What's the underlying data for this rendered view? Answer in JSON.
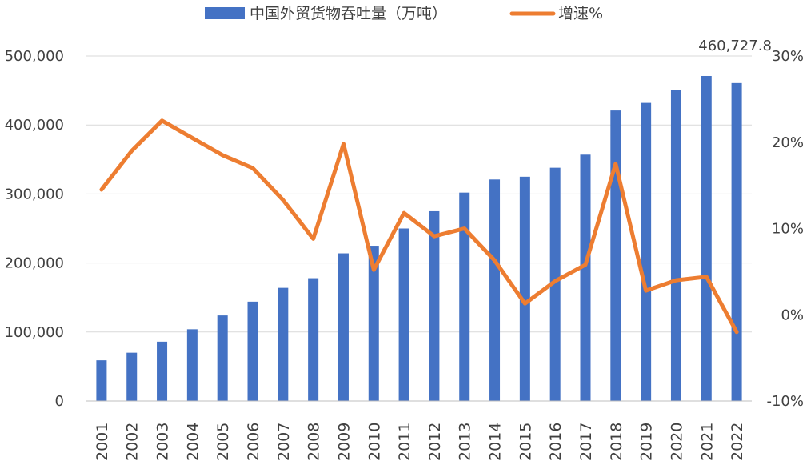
{
  "chart_data": {
    "type": "bar",
    "categories": [
      "2001",
      "2002",
      "2003",
      "2004",
      "2005",
      "2006",
      "2007",
      "2008",
      "2009",
      "2010",
      "2011",
      "2012",
      "2013",
      "2014",
      "2015",
      "2016",
      "2017",
      "2018",
      "2019",
      "2020",
      "2021",
      "2022"
    ],
    "series": [
      {
        "name": "中国外贸货物吞吐量（万吨）",
        "type": "bar",
        "axis": "left",
        "color": "#4472C4",
        "values": [
          59000,
          70000,
          86000,
          104000,
          124000,
          144000,
          164000,
          178000,
          214000,
          225000,
          250000,
          275000,
          302000,
          321000,
          325000,
          338000,
          357000,
          421000,
          432000,
          451000,
          471000,
          460727.8
        ]
      },
      {
        "name": "增速%",
        "type": "line",
        "axis": "right",
        "color": "#ED7D31",
        "values": [
          14.5,
          19.0,
          22.5,
          20.5,
          18.5,
          17.0,
          13.3,
          8.8,
          19.8,
          5.2,
          11.8,
          9.1,
          10.0,
          6.3,
          1.3,
          3.9,
          5.8,
          17.5,
          2.8,
          4.0,
          4.4,
          -2.0
        ]
      }
    ],
    "y_left": {
      "ylim": [
        0,
        500000
      ],
      "ticks": [
        "0",
        "100,000",
        "200,000",
        "300,000",
        "400,000",
        "500,000"
      ]
    },
    "y_right": {
      "ylim": [
        -10,
        30
      ],
      "ticks": [
        "-10%",
        "0%",
        "10%",
        "20%",
        "30%"
      ]
    },
    "annotations": [
      {
        "category": "2022",
        "text": "460,727.8"
      }
    ],
    "legend": "top-center",
    "grid": true
  }
}
